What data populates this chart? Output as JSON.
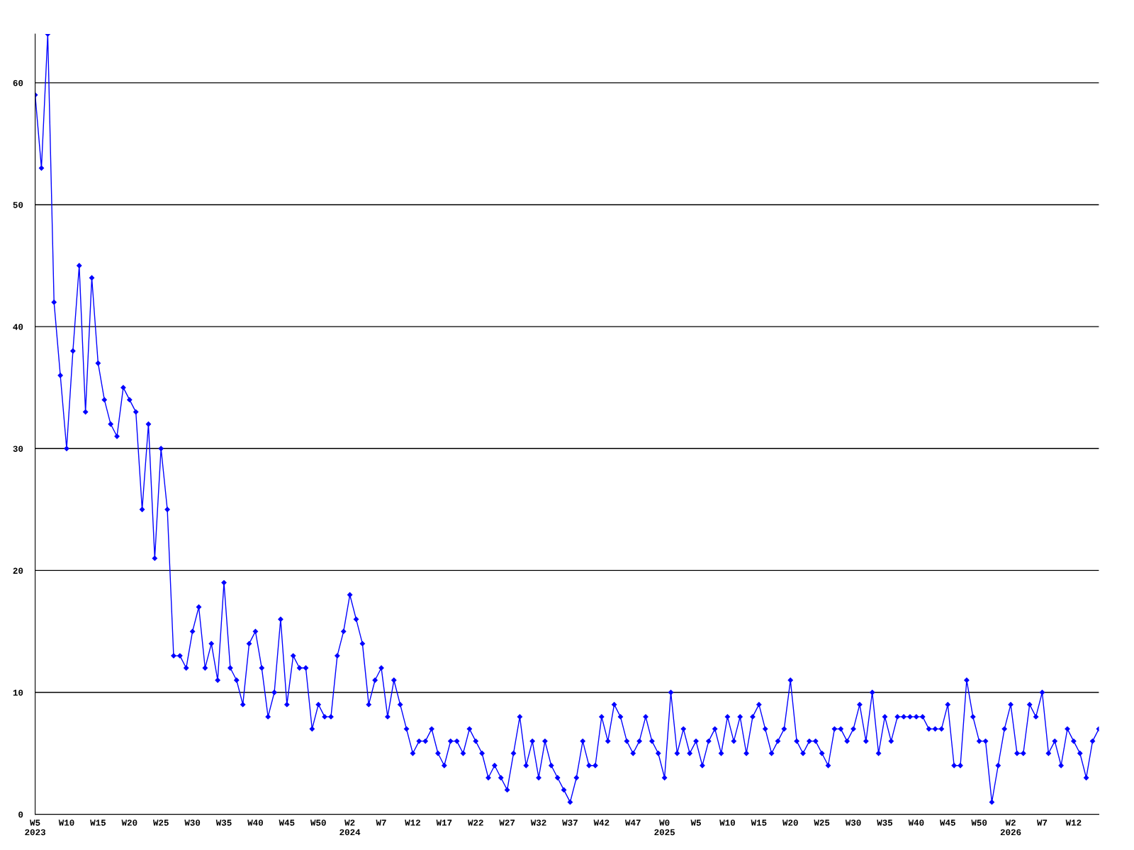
{
  "chart_data": {
    "type": "line",
    "categories": [
      "W5\n2023",
      null,
      null,
      null,
      null,
      "W10",
      null,
      null,
      null,
      null,
      "W15",
      null,
      null,
      null,
      null,
      "W20",
      null,
      null,
      null,
      null,
      "W25",
      null,
      null,
      null,
      null,
      "W30",
      null,
      null,
      null,
      null,
      "W35",
      null,
      null,
      null,
      null,
      "W40",
      null,
      null,
      null,
      null,
      "W45",
      null,
      null,
      null,
      null,
      "W50",
      null,
      null,
      null,
      null,
      "W2\n2024",
      null,
      null,
      null,
      null,
      "W7",
      null,
      null,
      null,
      null,
      "W12",
      null,
      null,
      null,
      null,
      "W17",
      null,
      null,
      null,
      null,
      "W22",
      null,
      null,
      null,
      null,
      "W27",
      null,
      null,
      null,
      null,
      "W32",
      null,
      null,
      null,
      null,
      "W37",
      null,
      null,
      null,
      null,
      "W42",
      null,
      null,
      null,
      null,
      "W47",
      null,
      null,
      null,
      null,
      "W0\n2025",
      null,
      null,
      null,
      null,
      "W5",
      null,
      null,
      null,
      null,
      "W10",
      null,
      null,
      null,
      null,
      "W15",
      null,
      null,
      null,
      null,
      "W20",
      null,
      null,
      null,
      null,
      "W25",
      null,
      null,
      null,
      null,
      "W30",
      null,
      null,
      null,
      null,
      "W35",
      null,
      null,
      null,
      null,
      "W40",
      null,
      null,
      null,
      null,
      "W45",
      null,
      null,
      null,
      null,
      "W50",
      null,
      null,
      null,
      null,
      "W2\n2026",
      null,
      null,
      null,
      null,
      "W7",
      null,
      null,
      null,
      null,
      "W12",
      null,
      null,
      null,
      null
    ],
    "series": [
      {
        "color": "#0000ff",
        "values": [
          59,
          53,
          64,
          42,
          36,
          30,
          38,
          45,
          33,
          44,
          37,
          34,
          32,
          31,
          35,
          34,
          33,
          25,
          32,
          21,
          30,
          25,
          13,
          13,
          12,
          15,
          17,
          12,
          14,
          11,
          19,
          12,
          11,
          9,
          14,
          15,
          12,
          8,
          10,
          16,
          9,
          13,
          12,
          12,
          7,
          9,
          8,
          8,
          13,
          15,
          18,
          16,
          14,
          9,
          11,
          12,
          8,
          11,
          9,
          7,
          5,
          6,
          6,
          7,
          5,
          4,
          6,
          6,
          5,
          7,
          6,
          5,
          3,
          4,
          3,
          2,
          5,
          8,
          4,
          6,
          3,
          6,
          4,
          3,
          2,
          1,
          3,
          6,
          4,
          4,
          8,
          6,
          9,
          8,
          6,
          5,
          6,
          8,
          6,
          5,
          3,
          10,
          5,
          7,
          5,
          6,
          4,
          6,
          7,
          5,
          8,
          6,
          8,
          5,
          8,
          9,
          7,
          5,
          6,
          7,
          11,
          6,
          5,
          6,
          6,
          5,
          4,
          7,
          7,
          6,
          7,
          9,
          6,
          10,
          5,
          8,
          6,
          8,
          8,
          8,
          8,
          8,
          7,
          7,
          7,
          9,
          4,
          4,
          11,
          8,
          6,
          6,
          1,
          4,
          7,
          9,
          5,
          5,
          9,
          8,
          10,
          5,
          6,
          4,
          7,
          6,
          5,
          3,
          6,
          7
        ]
      }
    ],
    "ylim": [
      0,
      64
    ],
    "yticks": [
      0,
      10,
      20,
      30,
      40,
      50,
      60
    ],
    "grid": "y",
    "marker": "diamond",
    "line_style": "solid"
  }
}
